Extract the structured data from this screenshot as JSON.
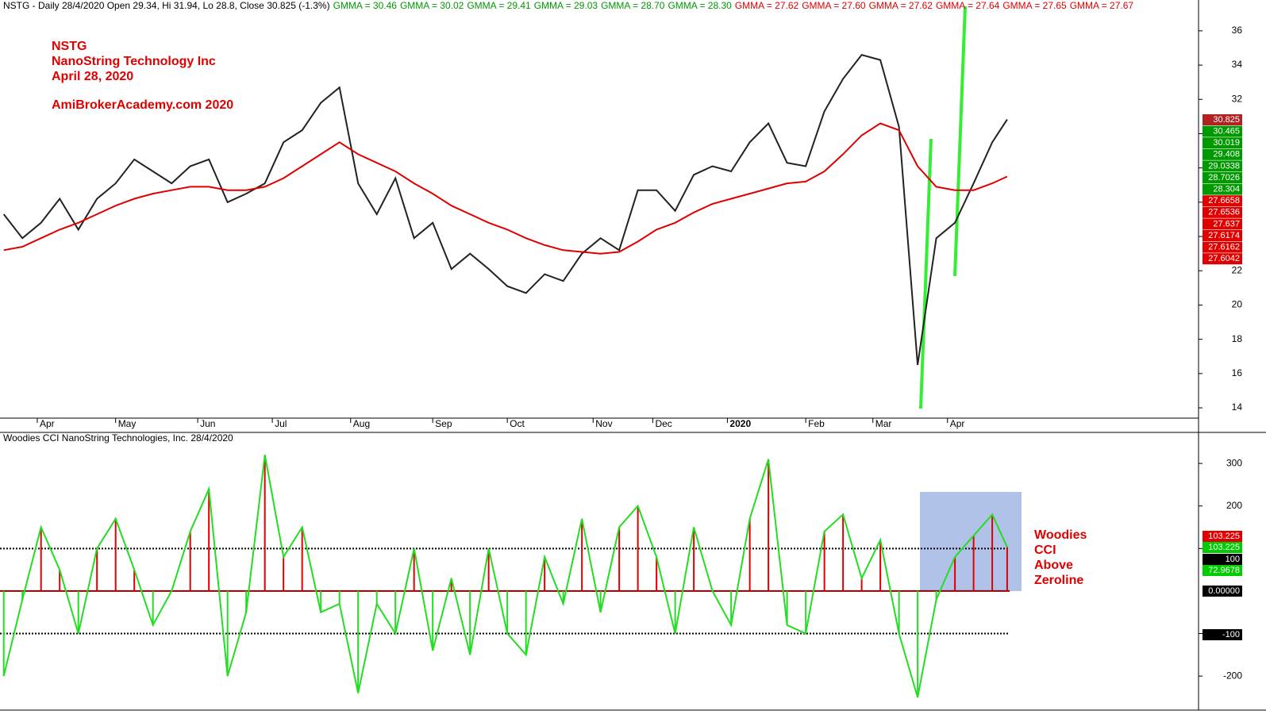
{
  "chart_data": [
    {
      "type": "line",
      "header": "NSTG - Daily 28/4/2020 Open 29.34, Hi 31.94, Lo 28.8, Close 30.825 (-1.3%)",
      "gmma": [
        {
          "text": "GMMA = 30.46",
          "color": "#009900"
        },
        {
          "text": "GMMA = 30.02",
          "color": "#009900"
        },
        {
          "text": "GMMA = 29.41",
          "color": "#009900"
        },
        {
          "text": "GMMA = 29.03",
          "color": "#009900"
        },
        {
          "text": "GMMA = 28.70",
          "color": "#009900"
        },
        {
          "text": "GMMA = 28.30",
          "color": "#009900"
        },
        {
          "text": "GMMA = 27.62",
          "color": "#e00000"
        },
        {
          "text": "GMMA = 27.60",
          "color": "#e00000"
        },
        {
          "text": "GMMA = 27.62",
          "color": "#e00000"
        },
        {
          "text": "GMMA = 27.64",
          "color": "#e00000"
        },
        {
          "text": "GMMA = 27.65",
          "color": "#e00000"
        },
        {
          "text": "GMMA = 27.67",
          "color": "#e00000"
        }
      ],
      "annotations": [
        "NSTG",
        "NanoString Technology Inc",
        "April 28, 2020",
        "AmiBrokerAcademy.com  2020"
      ],
      "x": [
        0,
        5,
        10,
        15,
        20,
        25,
        30,
        35,
        40,
        45,
        50,
        55,
        60,
        65,
        70,
        75,
        80,
        85,
        90,
        95,
        100,
        105,
        110,
        115,
        120,
        125,
        130,
        135,
        140,
        145,
        150,
        155,
        160,
        165,
        170,
        175,
        180,
        185,
        190,
        195,
        200,
        205,
        210,
        215,
        220,
        225,
        230,
        235,
        240,
        245,
        250,
        255,
        260,
        265,
        269
      ],
      "series": [
        {
          "color": "#222222",
          "values": [
            25.3,
            23.9,
            24.8,
            26.2,
            24.4,
            26.2,
            27.1,
            28.5,
            27.8,
            27.1,
            28.1,
            28.5,
            26.0,
            26.5,
            27.1,
            29.5,
            30.2,
            31.8,
            32.7,
            27.1,
            25.3,
            27.4,
            23.9,
            24.8,
            22.1,
            23.0,
            22.1,
            21.1,
            20.7,
            21.8,
            21.4,
            23.0,
            23.9,
            23.2,
            26.7,
            26.7,
            25.5,
            27.6,
            28.1,
            27.8,
            29.5,
            30.6,
            28.3,
            28.1,
            31.3,
            33.2,
            34.6,
            34.3,
            30.4,
            16.5,
            23.9,
            24.8,
            27.1,
            29.5,
            30.825
          ]
        },
        {
          "color": "#e00000",
          "values": [
            23.2,
            23.4,
            23.9,
            24.4,
            24.8,
            25.3,
            25.8,
            26.2,
            26.5,
            26.7,
            26.9,
            26.9,
            26.7,
            26.7,
            26.9,
            27.4,
            28.1,
            28.8,
            29.5,
            28.8,
            28.3,
            27.8,
            27.1,
            26.5,
            25.8,
            25.3,
            24.8,
            24.4,
            23.9,
            23.5,
            23.2,
            23.1,
            23.0,
            23.1,
            23.7,
            24.4,
            24.8,
            25.4,
            25.9,
            26.2,
            26.5,
            26.8,
            27.1,
            27.2,
            27.8,
            28.8,
            29.9,
            30.6,
            30.2,
            28.1,
            26.9,
            26.7,
            26.7,
            27.1,
            27.5
          ]
        }
      ],
      "xlim": [
        -1,
        320.3
      ],
      "xticks": [
        {
          "value": 9,
          "label": "Apr"
        },
        {
          "value": 30,
          "label": "May"
        },
        {
          "value": 52,
          "label": "Jun"
        },
        {
          "value": 72,
          "label": "Jul"
        },
        {
          "value": 93,
          "label": "Aug"
        },
        {
          "value": 115,
          "label": "Sep"
        },
        {
          "value": 135,
          "label": "Oct"
        },
        {
          "value": 158,
          "label": "Nov"
        },
        {
          "value": 174,
          "label": "Dec"
        },
        {
          "value": 194,
          "label": "2020"
        },
        {
          "value": 215,
          "label": "Feb"
        },
        {
          "value": 233,
          "label": "Mar"
        },
        {
          "value": 253,
          "label": "Apr"
        }
      ],
      "ylim": [
        13.4,
        37.8
      ],
      "yticks": [
        14,
        16,
        18,
        20,
        22,
        24,
        26,
        28,
        30,
        32,
        34,
        36
      ],
      "tags": [
        {
          "value": 30.825,
          "color": "#b22222"
        },
        {
          "value": 30.465,
          "color": "#009900"
        },
        {
          "value": 30.019,
          "color": "#009900"
        },
        {
          "value": 29.408,
          "color": "#009900"
        },
        {
          "value": 29.0338,
          "color": "#009900"
        },
        {
          "value": 28.7026,
          "color": "#009900"
        },
        {
          "value": 28.304,
          "color": "#009900"
        },
        {
          "value": 27.6658,
          "color": "#e00000"
        },
        {
          "value": 27.6536,
          "color": "#e00000"
        },
        {
          "value": 27.637,
          "color": "#e00000"
        },
        {
          "value": 27.6174,
          "color": "#e00000"
        },
        {
          "value": 27.6162,
          "color": "#e00000"
        },
        {
          "value": 27.6042,
          "color": "#e00000"
        }
      ]
    },
    {
      "type": "bar",
      "header": "Woodies CCI  NanoString Technologies, Inc. 28/4/2020",
      "annotations": [
        "Woodies",
        "CCI",
        "Above",
        "Zeroline"
      ],
      "x": [
        0,
        5,
        10,
        15,
        20,
        25,
        30,
        35,
        40,
        45,
        50,
        55,
        60,
        65,
        70,
        75,
        80,
        85,
        90,
        95,
        100,
        105,
        110,
        115,
        120,
        125,
        130,
        135,
        140,
        145,
        150,
        155,
        160,
        165,
        170,
        175,
        180,
        185,
        190,
        195,
        200,
        205,
        210,
        215,
        220,
        225,
        230,
        235,
        240,
        245,
        250,
        255,
        260,
        265,
        269
      ],
      "series": [
        {
          "color": "#22dd22",
          "values": [
            -200,
            -20,
            150,
            50,
            -100,
            100,
            170,
            50,
            -80,
            0,
            140,
            240,
            -200,
            -50,
            320,
            80,
            150,
            -50,
            -30,
            -240,
            -30,
            -100,
            100,
            -140,
            30,
            -150,
            100,
            -100,
            -150,
            80,
            -30,
            170,
            -50,
            150,
            200,
            80,
            -100,
            150,
            0,
            -80,
            170,
            310,
            -80,
            -100,
            140,
            180,
            30,
            120,
            -100,
            -250,
            -20,
            80,
            130,
            180,
            103.225
          ]
        }
      ],
      "xlim": [
        -1,
        320.3
      ],
      "ylim": [
        -280,
        373
      ],
      "yticks": [
        -200,
        -100,
        100,
        200,
        300
      ],
      "reference_lines": [
        100,
        0,
        -100
      ],
      "tags": [
        {
          "value": 103.225,
          "color": "#e00000"
        },
        {
          "value": 103.225,
          "color": "#00cc00"
        },
        {
          "value": 100,
          "color": "#000000"
        },
        {
          "value": 72.9678,
          "color": "#00cc00"
        },
        {
          "value": {
            "value": 0,
            "label": "0.00000"
          },
          "color": "#000000"
        },
        {
          "value": -100,
          "color": "#000000"
        }
      ]
    }
  ]
}
